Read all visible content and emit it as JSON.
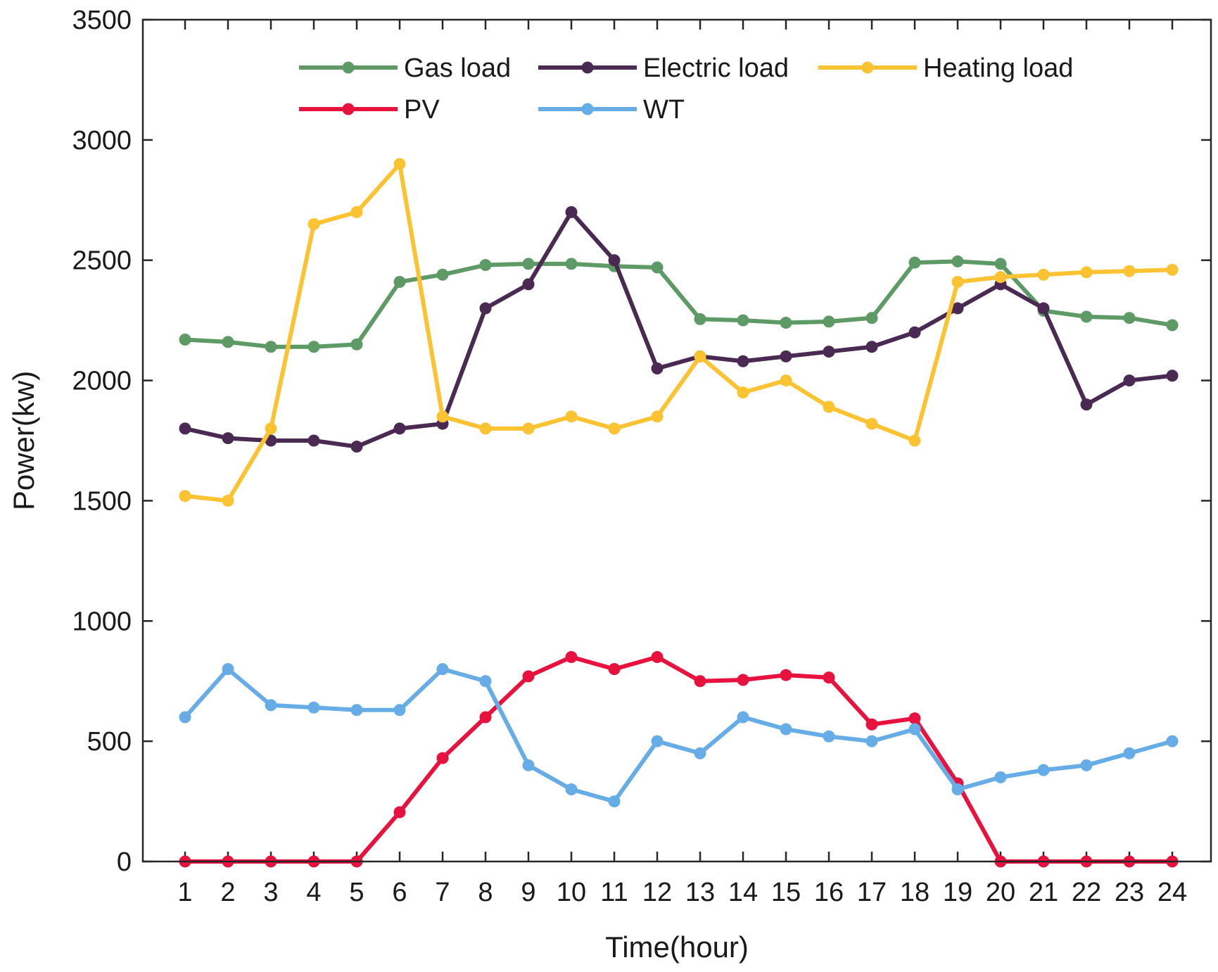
{
  "chart_data": {
    "type": "line",
    "title": "",
    "xlabel": "Time(hour)",
    "ylabel": "Power(kw)",
    "ylim": [
      0,
      3500
    ],
    "yticks": [
      0,
      500,
      1000,
      1500,
      2000,
      2500,
      3000,
      3500
    ],
    "x": [
      1,
      2,
      3,
      4,
      5,
      6,
      7,
      8,
      9,
      10,
      11,
      12,
      13,
      14,
      15,
      16,
      17,
      18,
      19,
      20,
      21,
      22,
      23,
      24
    ],
    "legend_position": "top",
    "grid": false,
    "series": [
      {
        "name": "Gas load",
        "color": "#5e9a66",
        "values": [
          2170,
          2160,
          2140,
          2140,
          2150,
          2410,
          2440,
          2480,
          2485,
          2485,
          2475,
          2470,
          2255,
          2250,
          2240,
          2245,
          2260,
          2490,
          2495,
          2485,
          2290,
          2265,
          2260,
          2230
        ]
      },
      {
        "name": "Electric load",
        "color": "#4a2a52",
        "values": [
          1800,
          1760,
          1750,
          1750,
          1725,
          1800,
          1820,
          2300,
          2400,
          2700,
          2500,
          2050,
          2100,
          2080,
          2100,
          2120,
          2140,
          2200,
          2300,
          2400,
          2300,
          1900,
          2000,
          2020
        ]
      },
      {
        "name": "Heating load",
        "color": "#fbc331",
        "values": [
          1520,
          1500,
          1800,
          2650,
          2700,
          2900,
          1850,
          1800,
          1800,
          1850,
          1800,
          1850,
          2100,
          1950,
          2000,
          1890,
          1820,
          1750,
          2410,
          2430,
          2440,
          2450,
          2455,
          2460
        ]
      },
      {
        "name": "PV",
        "color": "#e8123f",
        "values": [
          0,
          0,
          0,
          0,
          0,
          205,
          430,
          600,
          770,
          850,
          800,
          850,
          750,
          755,
          775,
          765,
          570,
          595,
          325,
          0,
          0,
          0,
          0,
          0
        ]
      },
      {
        "name": "WT",
        "color": "#66ade8",
        "values": [
          600,
          800,
          650,
          640,
          630,
          630,
          800,
          750,
          400,
          300,
          250,
          500,
          450,
          600,
          550,
          520,
          500,
          550,
          300,
          350,
          380,
          400,
          450,
          500
        ]
      }
    ]
  }
}
